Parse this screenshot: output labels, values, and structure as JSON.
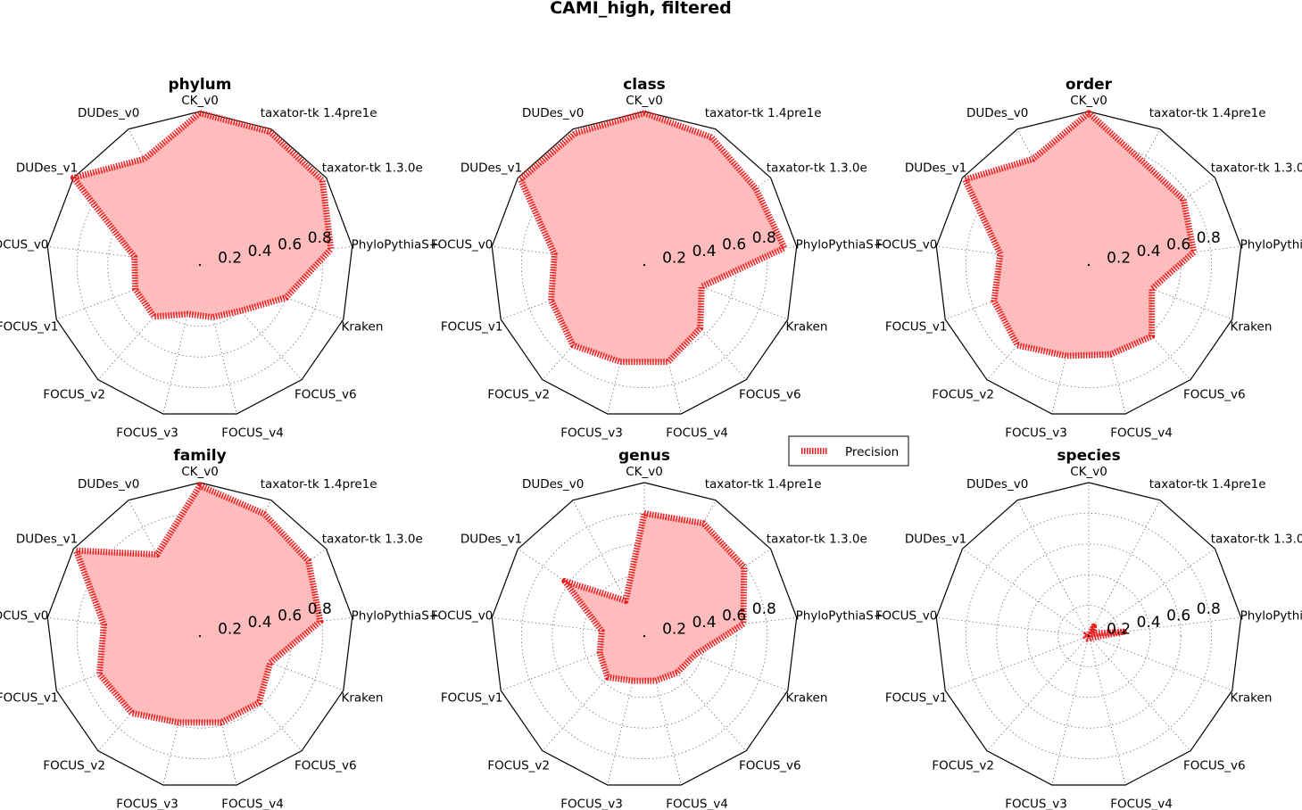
{
  "figure_title": "CAMI_high, filtered",
  "chart_data": {
    "type": "radar",
    "categories": [
      "CK_v0",
      "taxator-tk 1.4pre1e",
      "taxator-tk 1.3.0e",
      "PhyloPythiaS+",
      "Kraken",
      "FOCUS_v6",
      "FOCUS_v4",
      "FOCUS_v3",
      "FOCUS_v2",
      "FOCUS_v1",
      "FOCUS_v0",
      "DUDes_v1",
      "DUDes_v0"
    ],
    "radial_ticks": [
      "0.2",
      "0.4",
      "0.6",
      "0.8"
    ],
    "rlim": [
      0,
      1
    ],
    "legend": {
      "label": "Precision",
      "placement": "center"
    },
    "colors": {
      "line": "#ee1c1c",
      "fill": "#ffbcbc",
      "outline": "#000000",
      "grid": "#555555"
    },
    "panels": [
      {
        "title": "phylum",
        "series": [
          {
            "name": "Precision",
            "values": [
              0.99,
              0.98,
              0.97,
              0.86,
              0.6,
              0.4,
              0.35,
              0.33,
              0.45,
              0.45,
              0.43,
              1.0,
              0.78
            ]
          }
        ]
      },
      {
        "title": "class",
        "series": [
          {
            "name": "Precision",
            "values": [
              0.99,
              0.94,
              0.88,
              0.92,
              0.4,
              0.55,
              0.65,
              0.65,
              0.7,
              0.65,
              0.59,
              0.98,
              0.97
            ]
          }
        ]
      },
      {
        "title": "order",
        "series": [
          {
            "name": "Precision",
            "values": [
              0.99,
              0.76,
              0.75,
              0.69,
              0.44,
              0.62,
              0.6,
              0.61,
              0.7,
              0.66,
              0.58,
              0.98,
              0.78
            ]
          }
        ]
      },
      {
        "title": "family",
        "series": [
          {
            "name": "Precision",
            "values": [
              0.98,
              0.9,
              0.86,
              0.79,
              0.49,
              0.58,
              0.58,
              0.58,
              0.67,
              0.7,
              0.63,
              0.98,
              0.6
            ]
          }
        ]
      },
      {
        "title": "genus",
        "series": [
          {
            "name": "Precision",
            "values": [
              0.8,
              0.83,
              0.79,
              0.65,
              0.35,
              0.32,
              0.3,
              0.3,
              0.36,
              0.31,
              0.28,
              0.63,
              0.26
            ]
          }
        ]
      },
      {
        "title": "species",
        "series": [
          {
            "name": "Precision",
            "values": [
              0.0,
              0.07,
              0.03,
              0.23,
              0.03,
              0.02,
              0.02,
              0.02,
              0.02,
              0.02,
              0.02,
              0.02,
              0.02
            ]
          }
        ]
      }
    ]
  }
}
